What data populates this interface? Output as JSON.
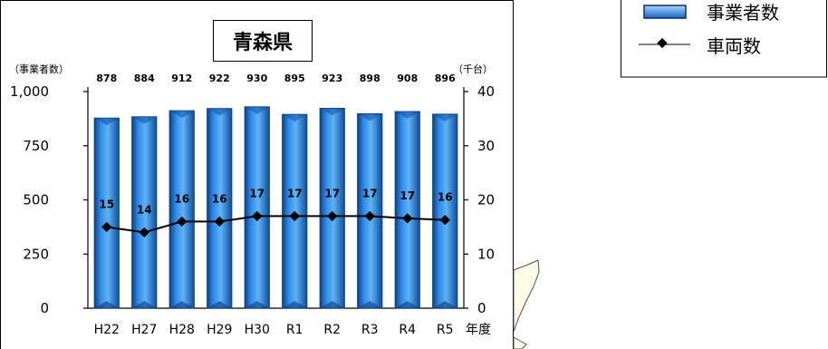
{
  "chart_data": {
    "type": "bar",
    "title": "青森県",
    "categories": [
      "H22",
      "H27",
      "H28",
      "H29",
      "H30",
      "R1",
      "R2",
      "R3",
      "R4",
      "R5"
    ],
    "x_axis_suffix": "年度",
    "left_axis": {
      "unit_label": "（事業者数）",
      "ticks": [
        "0",
        "250",
        "500",
        "750",
        "1,000"
      ],
      "range": [
        0,
        1000
      ]
    },
    "right_axis": {
      "unit_label": "（千台）",
      "ticks": [
        "0",
        "10",
        "20",
        "30",
        "40"
      ],
      "range": [
        0,
        40
      ]
    },
    "series": [
      {
        "name": "事業者数",
        "type": "bar",
        "axis": "left",
        "values": [
          878,
          884,
          912,
          922,
          930,
          895,
          923,
          898,
          908,
          896
        ],
        "labels": [
          "878",
          "884",
          "912",
          "922",
          "930",
          "895",
          "923",
          "898",
          "908",
          "896"
        ],
        "color": "#1f6fd0"
      },
      {
        "name": "車両数",
        "type": "line",
        "axis": "right",
        "values": [
          15,
          14,
          16,
          16,
          17,
          17,
          17,
          17,
          16.6,
          16.3
        ],
        "labels": [
          "15",
          "14",
          "16",
          "16",
          "17",
          "17",
          "17",
          "17",
          "17",
          "16"
        ],
        "color": "#000000"
      }
    ],
    "legend": {
      "placement": "top-right"
    }
  }
}
